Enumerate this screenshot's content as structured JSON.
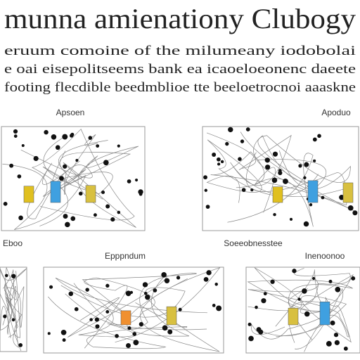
{
  "header": {
    "title": "munna amienationy Clubogy",
    "lines": [
      "eruum comoine of the milumeany iodobolai",
      "e oai eisepolitseems bank ea icaoeloeonenc daeete",
      "footing flecdible beedmblioe tte beeloetrocnoi aaaskne"
    ]
  },
  "panels": [
    {
      "label": "Apsoen"
    },
    {
      "label": "Apoduo"
    },
    {
      "label": "Eboo"
    },
    {
      "label": "Epppndum"
    },
    {
      "label": "Soeeobnesstee"
    },
    {
      "label": "Inenoonoo"
    }
  ]
}
